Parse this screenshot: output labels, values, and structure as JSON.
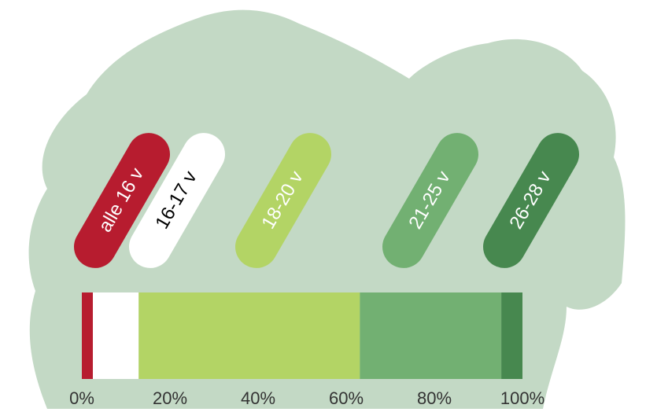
{
  "chart_data": {
    "type": "stacked_bar_100",
    "series": [
      {
        "name": "alle 16 v",
        "color": "#b71c2f",
        "values": [
          2.5
        ]
      },
      {
        "name": "16-17 v",
        "color": "#ffffff",
        "values": [
          10.4
        ]
      },
      {
        "name": "18-20 v",
        "color": "#b3d465",
        "values": [
          50.2
        ]
      },
      {
        "name": "21-25 v",
        "color": "#72b072",
        "values": [
          32.1
        ]
      },
      {
        "name": "26-28 v",
        "color": "#47884f",
        "values": [
          4.8
        ]
      }
    ],
    "xlim": [
      0,
      100
    ],
    "xticks": [
      {
        "value": 0,
        "label": "0%"
      },
      {
        "value": 20,
        "label": "20%"
      },
      {
        "value": 40,
        "label": "40%"
      },
      {
        "value": 60,
        "label": "60%"
      },
      {
        "value": 80,
        "label": "80%"
      },
      {
        "value": 100,
        "label": "100%"
      }
    ]
  }
}
